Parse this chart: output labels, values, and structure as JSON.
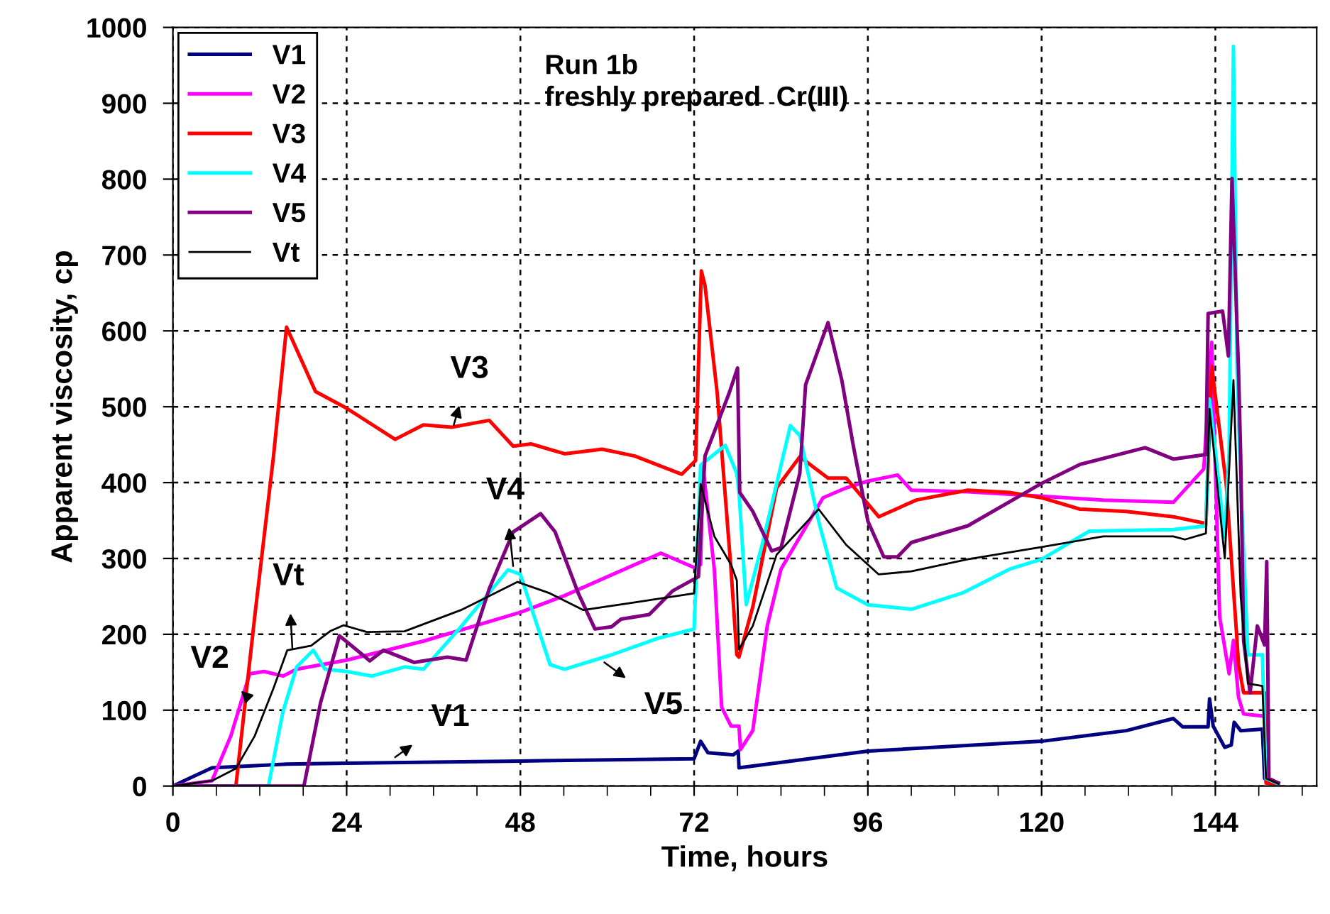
{
  "chart_data": {
    "type": "line",
    "xlabel": "Time, hours",
    "ylabel": "Apparent viscosity, cp",
    "xlim": [
      0,
      158
    ],
    "ylim": [
      0,
      1000
    ],
    "xticks": [
      0,
      {
        "value": 6,
        "label": null
      },
      {
        "value": 12,
        "label": null
      },
      {
        "value": 18,
        "label": null
      },
      24,
      {
        "value": 30,
        "label": null
      },
      {
        "value": 36,
        "label": null
      },
      {
        "value": 42,
        "label": null
      },
      48,
      {
        "value": 54,
        "label": null
      },
      {
        "value": 60,
        "label": null
      },
      {
        "value": 66,
        "label": null
      },
      72,
      {
        "value": 78,
        "label": null
      },
      {
        "value": 84,
        "label": null
      },
      {
        "value": 90,
        "label": null
      },
      96,
      {
        "value": 102,
        "label": null
      },
      {
        "value": 108,
        "label": null
      },
      {
        "value": 114,
        "label": null
      },
      120,
      {
        "value": 126,
        "label": null
      },
      {
        "value": 132,
        "label": null
      },
      {
        "value": 138,
        "label": null
      },
      144,
      {
        "value": 150,
        "label": null
      },
      {
        "value": 156,
        "label": null
      }
    ],
    "yticks": [
      0,
      100,
      200,
      300,
      400,
      500,
      600,
      700,
      800,
      900,
      1000
    ],
    "grid": true,
    "legend": "top left",
    "marker": "none",
    "line_style": "solid",
    "annotations": [
      "Run 1b\nfreshly prepared  Cr(III)",
      {
        "text": "V3",
        "x": 38.8,
        "y": 476
      },
      {
        "text": "V4",
        "x": 47,
        "y": 290
      },
      {
        "text": "Vt",
        "x": 16.5,
        "y": 182
      },
      {
        "text": "V2",
        "x": 10,
        "y": 120
      },
      {
        "text": "V5",
        "x": 59.6,
        "y": 163
      },
      {
        "text": "V1",
        "x": 30.7,
        "y": 38
      }
    ],
    "series": [
      {
        "name": "V1",
        "color": "#000080",
        "x": [
          0,
          5.4,
          15.8,
          24,
          48,
          72,
          72.9,
          73.9,
          77.4,
          78.1,
          78.2,
          96,
          120,
          131.7,
          138.2,
          139.5,
          143,
          143.2,
          143.7,
          145.3,
          146.2,
          146.6,
          147.5,
          150.5,
          150.8,
          152.7
        ],
        "values": [
          0,
          24,
          29,
          30,
          33,
          36,
          59,
          44,
          41,
          46,
          24,
          46,
          59,
          73,
          89,
          78,
          78,
          115,
          79,
          51,
          54,
          84,
          73,
          75,
          10,
          4
        ]
      },
      {
        "name": "V2",
        "color": "#ff00ff",
        "x": [
          0,
          5.4,
          8.0,
          10.6,
          12.6,
          15.2,
          17.1,
          24,
          34.6,
          48,
          54.1,
          67.4,
          72,
          72.9,
          73.2,
          74.8,
          75.8,
          77.1,
          78.2,
          78.4,
          80.1,
          82.1,
          84,
          89.8,
          93,
          96,
          100.1,
          102,
          109.8,
          120,
          128.5,
          138.2,
          142.4,
          143.5,
          144.6,
          145.9,
          146.5,
          147.2,
          147.9,
          150.8,
          151.1,
          152.7
        ],
        "values": [
          0,
          7,
          66,
          148,
          151,
          145,
          154,
          166,
          191,
          229,
          251,
          307,
          288,
          292,
          423,
          285,
          104,
          79,
          79,
          48,
          73,
          211,
          286,
          380,
          393,
          402,
          410,
          390,
          388,
          382,
          377,
          374,
          418,
          585,
          223,
          148,
          192,
          117,
          95,
          92,
          7,
          3
        ]
      },
      {
        "name": "V3",
        "color": "#ff0000",
        "x": [
          0,
          8.7,
          11.3,
          13.9,
          15.7,
          19.7,
          24,
          30.7,
          34.6,
          38.5,
          43.7,
          47,
          49.5,
          54.1,
          59.3,
          63.8,
          70.3,
          72.2,
          73.0,
          73.5,
          75.2,
          77.1,
          77.9,
          78.2,
          80.1,
          83.4,
          86.6,
          90.5,
          93,
          97.5,
          102.7,
          109.8,
          115.6,
          120,
          125.3,
          131.7,
          138.2,
          142.7,
          143.5,
          145.5,
          146.9,
          147.2,
          147.9,
          150.8,
          151,
          152.7
        ],
        "values": [
          0,
          0,
          223,
          435,
          605,
          520,
          498,
          457,
          476,
          473,
          482,
          448,
          451,
          438,
          444,
          435,
          411,
          429,
          679,
          660,
          517,
          285,
          173,
          170,
          236,
          393,
          434,
          406,
          406,
          355,
          377,
          390,
          387,
          380,
          365,
          362,
          355,
          346,
          553,
          398,
          205,
          161,
          123,
          123,
          4,
          3
        ]
      },
      {
        "name": "V4",
        "color": "#00ffff",
        "x": [
          0,
          13.2,
          15.2,
          17.1,
          19.4,
          21,
          24,
          27.5,
          32,
          34.6,
          39.8,
          46.3,
          48,
          52.1,
          54.1,
          60.6,
          67.1,
          72,
          72.9,
          76.3,
          77.9,
          78.2,
          79.2,
          81.4,
          85.3,
          86.6,
          89.2,
          91.7,
          96,
          102,
          109.2,
          115.6,
          120,
          126.6,
          138.2,
          142.7,
          143.2,
          145.3,
          145.9,
          146.5,
          147.0,
          147.5,
          148.5,
          150.5,
          151,
          152.7
        ],
        "values": [
          0,
          0,
          98,
          157,
          179,
          154,
          151,
          145,
          157,
          154,
          210,
          285,
          279,
          160,
          154,
          173,
          195,
          207,
          423,
          449,
          412,
          387,
          239,
          318,
          475,
          462,
          349,
          261,
          239,
          233,
          255,
          286,
          299,
          336,
          338,
          343,
          510,
          328,
          440,
          975,
          550,
          400,
          173,
          173,
          10,
          3
        ]
      },
      {
        "name": "V5",
        "color": "#800080",
        "x": [
          0,
          18.1,
          20.4,
          23,
          24.3,
          26.2,
          27.2,
          29.1,
          33.3,
          37.9,
          40.5,
          43.7,
          47,
          50.8,
          52.8,
          56,
          58.3,
          60.6,
          61.9,
          65.8,
          69,
          72.6,
          73.5,
          76.8,
          78.0,
          78.3,
          80.1,
          82.7,
          84,
          86.6,
          87.4,
          90.5,
          92.4,
          94,
          96,
          98.2,
          100.1,
          102,
          109.8,
          120,
          125.3,
          134.3,
          138.2,
          142.7,
          143,
          145,
          145.8,
          146.3,
          147.2,
          147.5,
          147.9,
          148.8,
          149.8,
          150.8,
          151.1,
          151.4,
          152.7
        ],
        "values": [
          0,
          0,
          110,
          198,
          188,
          173,
          165,
          179,
          163,
          170,
          166,
          260,
          335,
          359,
          335,
          254,
          207,
          210,
          220,
          226,
          257,
          276,
          435,
          517,
          551,
          387,
          362,
          310,
          314,
          412,
          529,
          611,
          535,
          448,
          349,
          302,
          302,
          321,
          343,
          399,
          424,
          446,
          431,
          437,
          623,
          626,
          567,
          801,
          548,
          435,
          192,
          123,
          211,
          186,
          296,
          10,
          4
        ]
      },
      {
        "name": "Vt",
        "color": "#000000",
        "x": [
          0,
          5.4,
          8.7,
          11.3,
          13.9,
          15.8,
          19.1,
          21.7,
          23.6,
          26.8,
          32,
          39.8,
          47.6,
          52.1,
          56.7,
          63.8,
          72,
          72.9,
          74.8,
          77.1,
          77.9,
          78.2,
          80.1,
          83.4,
          89.2,
          93,
          97.5,
          102,
          109.8,
          120,
          128.5,
          138.2,
          139.8,
          142.7,
          143.2,
          145.3,
          146.5,
          147.5,
          148.5,
          150.5,
          151,
          152.7
        ],
        "values": [
          0,
          7,
          23,
          66,
          129,
          179,
          185,
          204,
          212,
          203,
          204,
          232,
          269,
          254,
          232,
          242,
          254,
          398,
          329,
          292,
          271,
          180,
          211,
          305,
          365,
          318,
          279,
          283,
          299,
          315,
          329,
          329,
          325,
          333,
          497,
          300,
          535,
          250,
          135,
          132,
          10,
          3
        ]
      }
    ]
  }
}
